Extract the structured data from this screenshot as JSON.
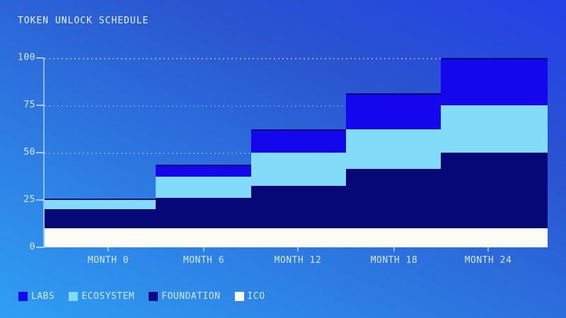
{
  "title": "TOKEN UNLOCK SCHEDULE",
  "chart_data": {
    "type": "area",
    "variant": "stepped-stacked",
    "title": "TOKEN UNLOCK SCHEDULE",
    "categories": [
      "MONTH 0",
      "MONTH 6",
      "MONTH 12",
      "MONTH 18",
      "MONTH 24"
    ],
    "series": [
      {
        "name": "ICO",
        "color": "#fdfdf8",
        "values": [
          10,
          10,
          10,
          10,
          10
        ]
      },
      {
        "name": "FOUNDATION",
        "color": "#070878",
        "values": [
          10,
          16.25,
          22.5,
          31.25,
          40
        ]
      },
      {
        "name": "ECOSYSTEM",
        "color": "#83dbfa",
        "values": [
          5,
          11.25,
          17.5,
          21.25,
          25
        ]
      },
      {
        "name": "LABS",
        "color": "#1407ee",
        "values": [
          0,
          6.25,
          12.5,
          18.75,
          25
        ]
      }
    ],
    "stack_order": "bottom to top: ICO, FOUNDATION, ECOSYSTEM, LABS",
    "cumulative_totals": [
      25,
      43.75,
      62.5,
      81.25,
      100
    ],
    "ylim": [
      0,
      100
    ],
    "y_ticks": [
      0,
      25,
      50,
      75,
      100
    ],
    "grid": "dotted horizontal gridlines at y ticks",
    "legend_position": "bottom-left",
    "legend_order": [
      "LABS",
      "ECOSYSTEM",
      "FOUNDATION",
      "ICO"
    ]
  },
  "legend": {
    "items": [
      {
        "label": "LABS",
        "color": "#1407ee"
      },
      {
        "label": "ECOSYSTEM",
        "color": "#83dbfa"
      },
      {
        "label": "FOUNDATION",
        "color": "#0a0a85"
      },
      {
        "label": "ICO",
        "color": "#ffffff"
      }
    ]
  },
  "colors": {
    "background_top": "#2341e7",
    "background_bottom": "#2f9ff3",
    "axis": "rgba(225,242,255,0.55)",
    "text": "#d5ebfc",
    "stack_top_stroke": "#0a0c6e"
  }
}
